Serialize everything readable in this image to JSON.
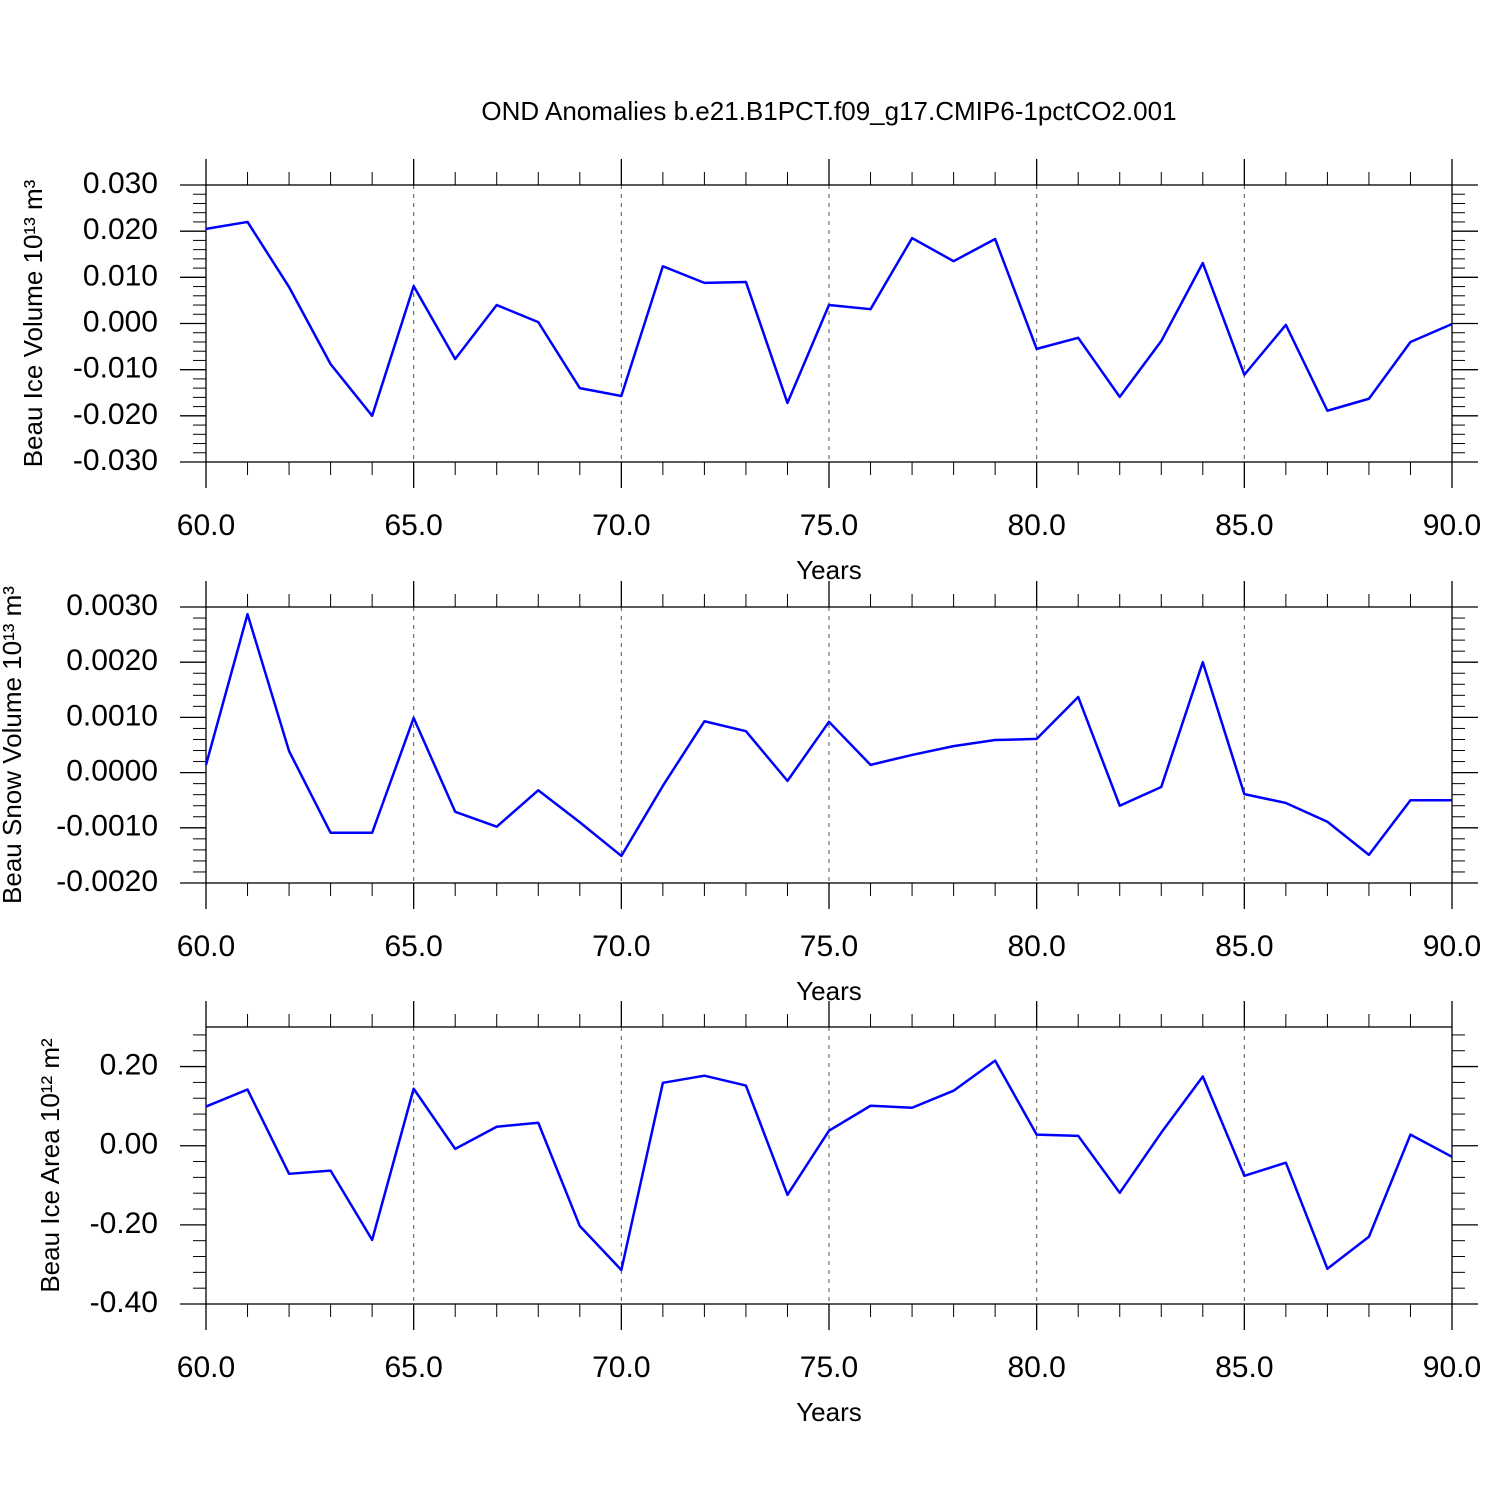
{
  "chart_data": [
    {
      "type": "line",
      "title": "OND Anomalies b.e21.B1PCT.f09_g17.CMIP6-1pctCO2.001",
      "xlabel": "Years",
      "ylabel": "Beau Ice Volume 10¹³ m³",
      "x": [
        60,
        61,
        62,
        63,
        64,
        65,
        66,
        67,
        68,
        69,
        70,
        71,
        72,
        73,
        74,
        75,
        76,
        77,
        78,
        79,
        80,
        81,
        82,
        83,
        84,
        85,
        86,
        87,
        88,
        89,
        90
      ],
      "series": [
        {
          "color": "#0000ff",
          "values": [
            0.0205,
            0.022,
            0.0079,
            -0.0088,
            -0.02,
            0.0081,
            -0.0077,
            0.004,
            0.0003,
            -0.014,
            -0.0157,
            0.0124,
            0.0088,
            0.009,
            -0.0172,
            0.004,
            0.0031,
            0.0185,
            0.0135,
            0.0183,
            -0.0055,
            -0.0031,
            -0.0159,
            -0.0038,
            0.0131,
            -0.0111,
            -0.0003,
            -0.0189,
            -0.0163,
            -0.004,
            -0.0001
          ]
        }
      ],
      "xlim": [
        60,
        90
      ],
      "xticks": [
        {
          "value": 60,
          "label": "60.0"
        },
        {
          "value": 65,
          "label": "65.0"
        },
        {
          "value": 70,
          "label": "70.0"
        },
        {
          "value": 75,
          "label": "75.0"
        },
        {
          "value": 80,
          "label": "80.0"
        },
        {
          "value": 85,
          "label": "85.0"
        },
        {
          "value": 90,
          "label": "90.0"
        }
      ],
      "ylim": [
        -0.03,
        0.03
      ],
      "yticks": [
        {
          "value": -0.03,
          "label": "-0.030"
        },
        {
          "value": -0.02,
          "label": "-0.020"
        },
        {
          "value": -0.01,
          "label": "-0.010"
        },
        {
          "value": 0,
          "label": "0.000"
        },
        {
          "value": 0.01,
          "label": "0.010"
        },
        {
          "value": 0.02,
          "label": "0.020"
        },
        {
          "value": 0.03,
          "label": "0.030"
        }
      ],
      "xgrid": true
    },
    {
      "type": "line",
      "xlabel": "Years",
      "ylabel": "Beau Snow Volume 10¹³ m³",
      "x": [
        60,
        61,
        62,
        63,
        64,
        65,
        66,
        67,
        68,
        69,
        70,
        71,
        72,
        73,
        74,
        75,
        76,
        77,
        78,
        79,
        80,
        81,
        82,
        83,
        84,
        85,
        86,
        87,
        88,
        89,
        90
      ],
      "series": [
        {
          "color": "#0000ff",
          "values": [
            0.00014,
            0.00287,
            0.00039,
            -0.00109,
            -0.00109,
            0.00099,
            -0.00071,
            -0.00098,
            -0.00032,
            -0.0009,
            -0.00151,
            -0.00024,
            0.00093,
            0.00075,
            -0.00015,
            0.00092,
            0.00014,
            0.00032,
            0.00048,
            0.00059,
            0.00061,
            0.00137,
            -0.0006,
            -0.00026,
            0.002,
            -0.00039,
            -0.00055,
            -0.00089,
            -0.00149,
            -0.0005,
            -0.0005
          ]
        }
      ],
      "xlim": [
        60,
        90
      ],
      "xticks": [
        {
          "value": 60,
          "label": "60.0"
        },
        {
          "value": 65,
          "label": "65.0"
        },
        {
          "value": 70,
          "label": "70.0"
        },
        {
          "value": 75,
          "label": "75.0"
        },
        {
          "value": 80,
          "label": "80.0"
        },
        {
          "value": 85,
          "label": "85.0"
        },
        {
          "value": 90,
          "label": "90.0"
        }
      ],
      "ylim": [
        -0.002,
        0.003
      ],
      "yticks": [
        {
          "value": -0.002,
          "label": "-0.0020"
        },
        {
          "value": -0.001,
          "label": "-0.0010"
        },
        {
          "value": 0,
          "label": "0.0000"
        },
        {
          "value": 0.001,
          "label": "0.0010"
        },
        {
          "value": 0.002,
          "label": "0.0020"
        },
        {
          "value": 0.003,
          "label": "0.0030"
        }
      ],
      "xgrid": true
    },
    {
      "type": "line",
      "xlabel": "Years",
      "ylabel": "Beau Ice Area 10¹² m²",
      "x": [
        60,
        61,
        62,
        63,
        64,
        65,
        66,
        67,
        68,
        69,
        70,
        71,
        72,
        73,
        74,
        75,
        76,
        77,
        78,
        79,
        80,
        81,
        82,
        83,
        84,
        85,
        86,
        87,
        88,
        89,
        90
      ],
      "series": [
        {
          "color": "#0000ff",
          "values": [
            0.099,
            0.142,
            -0.071,
            -0.063,
            -0.238,
            0.144,
            -0.008,
            0.048,
            0.058,
            -0.203,
            -0.314,
            0.159,
            0.177,
            0.152,
            -0.124,
            0.038,
            0.101,
            0.096,
            0.139,
            0.215,
            0.028,
            0.025,
            -0.119,
            0.033,
            0.175,
            -0.076,
            -0.043,
            -0.311,
            -0.23,
            0.028,
            -0.028
          ]
        }
      ],
      "xlim": [
        60,
        90
      ],
      "xticks": [
        {
          "value": 60,
          "label": "60.0"
        },
        {
          "value": 65,
          "label": "65.0"
        },
        {
          "value": 70,
          "label": "70.0"
        },
        {
          "value": 75,
          "label": "75.0"
        },
        {
          "value": 80,
          "label": "80.0"
        },
        {
          "value": 85,
          "label": "85.0"
        },
        {
          "value": 90,
          "label": "90.0"
        }
      ],
      "ylim": [
        -0.4,
        0.3
      ],
      "yticks": [
        {
          "value": -0.4,
          "label": "-0.40"
        },
        {
          "value": -0.2,
          "label": "-0.20"
        },
        {
          "value": 0,
          "label": "0.00"
        },
        {
          "value": 0.2,
          "label": "0.20"
        }
      ],
      "xgrid": true
    }
  ]
}
